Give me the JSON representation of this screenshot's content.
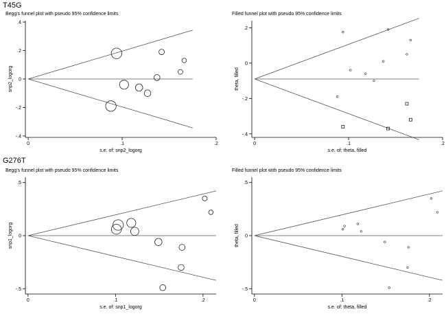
{
  "sections": [
    {
      "label": "T45G"
    },
    {
      "label": "G276T"
    }
  ],
  "chart_data": [
    {
      "type": "scatter",
      "title": "Begg's funnel plot with pseudo 95% confidence limits",
      "xlabel": "s.e. of: snp2_logorg",
      "ylabel": "snp2_logorg",
      "xlim": [
        -0.003,
        0.2
      ],
      "ylim": [
        -0.41,
        0.41
      ],
      "xticks": [
        {
          "v": 0,
          "label": "0"
        },
        {
          "v": 0.1,
          "label": ".1"
        },
        {
          "v": 0.2,
          "label": ".2"
        }
      ],
      "yticks": [
        {
          "v": -0.4,
          "label": "-.4"
        },
        {
          "v": -0.2,
          "label": "-.2"
        },
        {
          "v": 0,
          "label": "0"
        },
        {
          "v": 0.2,
          "label": ".2"
        },
        {
          "v": 0.4,
          "label": ".4"
        }
      ],
      "center": 0,
      "limit_end_x": 0.175,
      "marker": "circle",
      "points": [
        {
          "x": 0.094,
          "y": 0.18,
          "w": 3.5
        },
        {
          "x": 0.088,
          "y": -0.19,
          "w": 3.5
        },
        {
          "x": 0.102,
          "y": -0.04,
          "w": 3.0
        },
        {
          "x": 0.118,
          "y": -0.06,
          "w": 2.4
        },
        {
          "x": 0.127,
          "y": -0.1,
          "w": 2.2
        },
        {
          "x": 0.137,
          "y": 0.01,
          "w": 2.0
        },
        {
          "x": 0.142,
          "y": 0.19,
          "w": 1.8
        },
        {
          "x": 0.162,
          "y": 0.05,
          "w": 1.6
        },
        {
          "x": 0.166,
          "y": 0.13,
          "w": 1.5
        }
      ]
    },
    {
      "type": "scatter",
      "title": "Filled funnel plot with pseudo 95% confidence limits",
      "xlabel": "s.e. of: theta, filled",
      "ylabel": "theta, filled",
      "xlim": [
        -0.003,
        0.2
      ],
      "ylim": [
        -0.42,
        0.24
      ],
      "xticks": [
        {
          "v": 0,
          "label": "0"
        },
        {
          "v": 0.1,
          "label": ".1"
        },
        {
          "v": 0.2,
          "label": ".2"
        }
      ],
      "yticks": [
        {
          "v": -0.4,
          "label": "-.4"
        },
        {
          "v": -0.2,
          "label": "-.2"
        },
        {
          "v": 0,
          "label": "0"
        },
        {
          "v": 0.2,
          "label": ".2"
        }
      ],
      "center": -0.09,
      "limit_end_x": 0.175,
      "marker": "mixed",
      "points": [
        {
          "x": 0.094,
          "y": 0.175,
          "m": "o"
        },
        {
          "x": 0.088,
          "y": -0.19,
          "m": "o"
        },
        {
          "x": 0.102,
          "y": -0.04,
          "m": "o"
        },
        {
          "x": 0.118,
          "y": -0.06,
          "m": "o"
        },
        {
          "x": 0.127,
          "y": -0.1,
          "m": "o"
        },
        {
          "x": 0.137,
          "y": 0.01,
          "m": "o"
        },
        {
          "x": 0.142,
          "y": 0.19,
          "m": "o"
        },
        {
          "x": 0.162,
          "y": 0.05,
          "m": "o"
        },
        {
          "x": 0.166,
          "y": 0.13,
          "m": "o"
        },
        {
          "x": 0.094,
          "y": -0.36,
          "m": "s"
        },
        {
          "x": 0.142,
          "y": -0.37,
          "m": "s"
        },
        {
          "x": 0.162,
          "y": -0.23,
          "m": "s"
        },
        {
          "x": 0.166,
          "y": -0.32,
          "m": "s"
        }
      ]
    },
    {
      "type": "scatter",
      "title": "Begg's funnel plot with pseudo 95% confidence limits",
      "xlabel": "s.e. of: snp1_logorg",
      "ylabel": "snp1_logorg",
      "xlim": [
        -0.003,
        0.215
      ],
      "ylim": [
        -0.55,
        0.55
      ],
      "xticks": [
        {
          "v": 0,
          "label": "0"
        },
        {
          "v": 0.1,
          "label": ".1"
        },
        {
          "v": 0.2,
          "label": ".2"
        }
      ],
      "yticks": [
        {
          "v": -0.5,
          "label": "-.5"
        },
        {
          "v": 0,
          "label": "0"
        },
        {
          "v": 0.5,
          "label": ".5"
        }
      ],
      "center": 0,
      "limit_end_x": 0.215,
      "marker": "circle",
      "points": [
        {
          "x": 0.103,
          "y": 0.1,
          "w": 3.5
        },
        {
          "x": 0.101,
          "y": 0.06,
          "w": 3.3
        },
        {
          "x": 0.118,
          "y": 0.12,
          "w": 3.0
        },
        {
          "x": 0.122,
          "y": 0.04,
          "w": 2.7
        },
        {
          "x": 0.149,
          "y": -0.06,
          "w": 2.4
        },
        {
          "x": 0.176,
          "y": -0.11,
          "w": 2.0
        },
        {
          "x": 0.175,
          "y": -0.3,
          "w": 2.0
        },
        {
          "x": 0.154,
          "y": -0.49,
          "w": 2.0
        },
        {
          "x": 0.202,
          "y": 0.35,
          "w": 1.6
        },
        {
          "x": 0.209,
          "y": 0.22,
          "w": 1.5
        }
      ]
    },
    {
      "type": "scatter",
      "title": "Filled funnel plot with pseudo 95% confidence limits",
      "xlabel": "s.e. of: theta, filled",
      "ylabel": "theta, filled",
      "xlim": [
        -0.003,
        0.215
      ],
      "ylim": [
        -0.55,
        0.55
      ],
      "xticks": [
        {
          "v": 0,
          "label": "0"
        },
        {
          "v": 0.1,
          "label": ".1"
        },
        {
          "v": 0.2,
          "label": ".2"
        }
      ],
      "yticks": [
        {
          "v": -0.5,
          "label": "-.5"
        },
        {
          "v": 0,
          "label": "0"
        },
        {
          "v": 0.5,
          "label": ".5"
        }
      ],
      "center": 0,
      "limit_end_x": 0.215,
      "marker": "mixed",
      "points": [
        {
          "x": 0.103,
          "y": 0.09,
          "m": "o"
        },
        {
          "x": 0.101,
          "y": 0.06,
          "m": "o"
        },
        {
          "x": 0.118,
          "y": 0.11,
          "m": "o"
        },
        {
          "x": 0.122,
          "y": 0.04,
          "m": "o"
        },
        {
          "x": 0.149,
          "y": -0.06,
          "m": "o"
        },
        {
          "x": 0.176,
          "y": -0.11,
          "m": "o"
        },
        {
          "x": 0.175,
          "y": -0.3,
          "m": "o"
        },
        {
          "x": 0.154,
          "y": -0.49,
          "m": "o"
        },
        {
          "x": 0.202,
          "y": 0.35,
          "m": "o"
        },
        {
          "x": 0.209,
          "y": 0.22,
          "m": "o"
        }
      ]
    }
  ]
}
